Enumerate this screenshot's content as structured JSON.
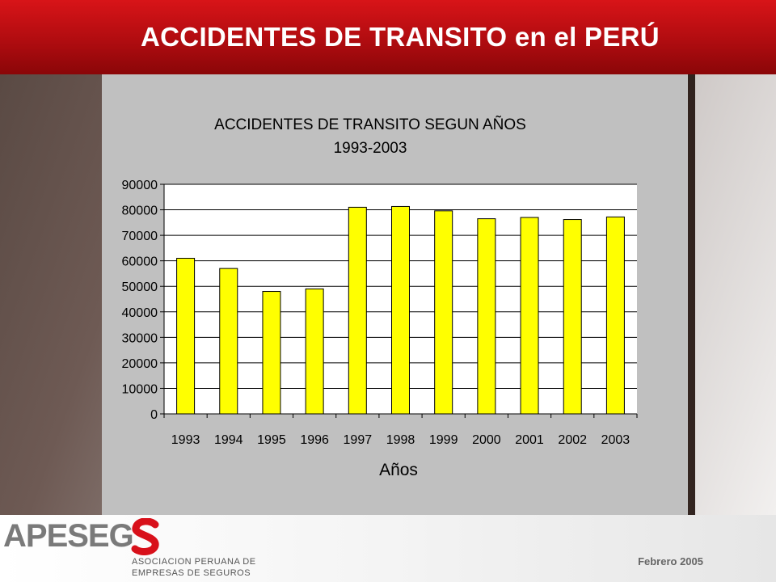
{
  "header": {
    "title": "ACCIDENTES DE TRANSITO en el PERÚ"
  },
  "footer": {
    "logo": "APESEG",
    "association_line1": "ASOCIACION PERUANA DE",
    "association_line2": "EMPRESAS DE SEGUROS",
    "date": "Febrero 2005"
  },
  "colors": {
    "header_red": "#c8101a",
    "bar_fill": "#ffff00",
    "plot_bg": "#ffffff",
    "panel_bg": "#c0c0c0"
  },
  "chart_data": {
    "type": "bar",
    "title_line1": "ACCIDENTES DE TRANSITO SEGUN AÑOS",
    "title_line2": "1993-2003",
    "xlabel": "Años",
    "ylabel": "",
    "categories": [
      "1993",
      "1994",
      "1995",
      "1996",
      "1997",
      "1998",
      "1999",
      "2000",
      "2001",
      "2002",
      "2003"
    ],
    "values": [
      61000,
      57000,
      48000,
      49000,
      81000,
      81300,
      79600,
      76500,
      77000,
      76200,
      77200
    ],
    "yticks": [
      "0",
      "10000",
      "20000",
      "30000",
      "40000",
      "50000",
      "60000",
      "70000",
      "80000",
      "90000"
    ],
    "ylim": [
      0,
      90000
    ],
    "grid": true
  }
}
